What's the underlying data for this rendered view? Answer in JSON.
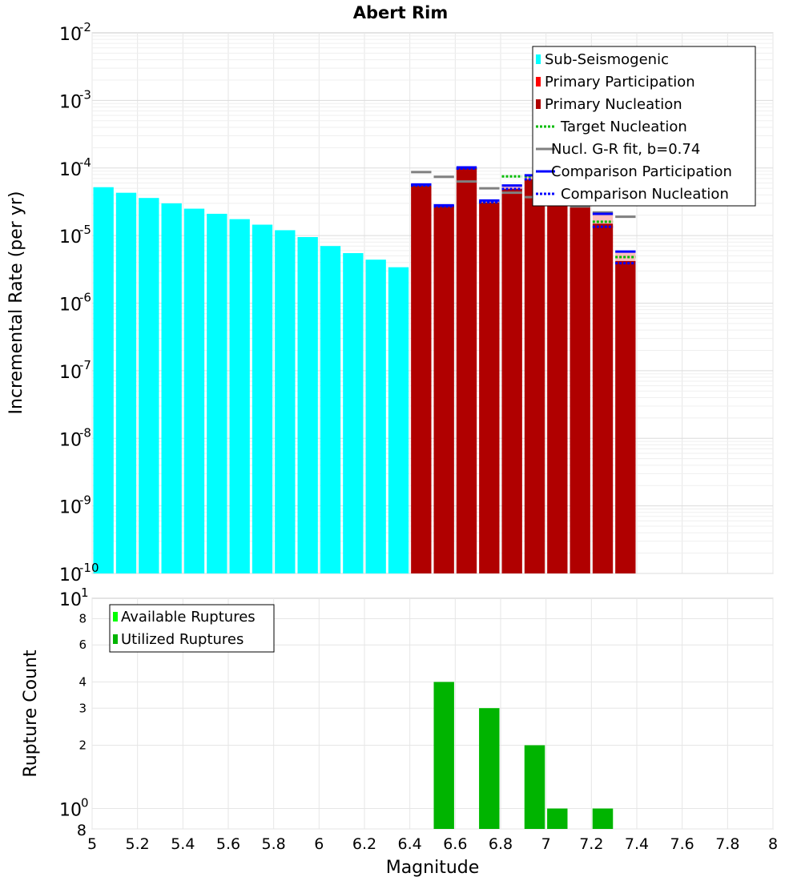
{
  "chart_data": [
    {
      "type": "bar",
      "title": "Abert Rim",
      "xlabel": "Magnitude",
      "ylabel": "Incremental Rate (per yr)",
      "yscale": "log",
      "xlim": [
        5,
        8
      ],
      "ylim": [
        1e-10,
        0.01
      ],
      "bin_width": 0.1,
      "y_tick_labels": [
        {
          "base": "10",
          "exp": "-10"
        },
        {
          "base": "10",
          "exp": "-9"
        },
        {
          "base": "10",
          "exp": "-8"
        },
        {
          "base": "10",
          "exp": "-7"
        },
        {
          "base": "10",
          "exp": "-6"
        },
        {
          "base": "10",
          "exp": "-5"
        },
        {
          "base": "10",
          "exp": "-4"
        },
        {
          "base": "10",
          "exp": "-3"
        },
        {
          "base": "10",
          "exp": "-2"
        }
      ],
      "series": [
        {
          "name": "Sub-Seismogenic",
          "color": "#00ffff",
          "kind": "bar",
          "x": [
            5.05,
            5.15,
            5.25,
            5.35,
            5.45,
            5.55,
            5.65,
            5.75,
            5.85,
            5.95,
            6.05,
            6.15,
            6.25,
            6.35
          ],
          "values": [
            5.2e-05,
            4.3e-05,
            3.6e-05,
            3e-05,
            2.5e-05,
            2.1e-05,
            1.75e-05,
            1.45e-05,
            1.2e-05,
            9.5e-06,
            7e-06,
            5.5e-06,
            4.4e-06,
            3.4e-06
          ]
        },
        {
          "name": "Primary Participation",
          "color": "#ff0000",
          "kind": "bar",
          "x": [
            6.45,
            6.55,
            6.65,
            6.75,
            6.85,
            6.95,
            7.05,
            7.15,
            7.25,
            7.35
          ],
          "values": [
            5.7e-05,
            2.8e-05,
            0.000102,
            3.3e-05,
            5.5e-05,
            7.8e-05,
            4.8e-05,
            5.3e-05,
            2.1e-05,
            5.8e-06
          ]
        },
        {
          "name": "Primary Nucleation",
          "color": "#b00000",
          "kind": "bar",
          "x": [
            6.45,
            6.55,
            6.65,
            6.75,
            6.85,
            6.95,
            7.05,
            7.15,
            7.25,
            7.35
          ],
          "values": [
            5.5e-05,
            2.7e-05,
            9.8e-05,
            3.1e-05,
            4.9e-05,
            6.8e-05,
            3.3e-05,
            3.3e-05,
            1.5e-05,
            4.2e-06
          ]
        },
        {
          "name": "Target Nucleation",
          "color": "#00bb00",
          "kind": "dotted-step",
          "x": [
            6.45,
            6.55,
            6.65,
            6.75,
            6.85,
            6.95,
            7.05,
            7.15,
            7.25,
            7.35
          ],
          "values": [
            5.5e-05,
            2.7e-05,
            9.8e-05,
            3.1e-05,
            7.5e-05,
            7.5e-05,
            3.3e-05,
            3.3e-05,
            1.6e-05,
            4.8e-06
          ]
        },
        {
          "name": "Nucl. G-R fit, b=0.74",
          "color": "#808080",
          "kind": "step",
          "x": [
            6.45,
            6.55,
            6.65,
            6.75,
            6.85,
            6.95,
            7.05,
            7.15,
            7.25,
            7.35
          ],
          "values": [
            8.7e-05,
            7.4e-05,
            6.3e-05,
            5e-05,
            4.3e-05,
            3.7e-05,
            3.2e-05,
            2.7e-05,
            2.2e-05,
            1.9e-05
          ]
        },
        {
          "name": "Comparison Participation",
          "color": "#0000ff",
          "kind": "step",
          "x": [
            6.45,
            6.55,
            6.65,
            6.75,
            6.85,
            6.95,
            7.05,
            7.15,
            7.25,
            7.35
          ],
          "values": [
            5.7e-05,
            2.8e-05,
            0.000102,
            3.3e-05,
            5.5e-05,
            7.8e-05,
            4.8e-05,
            5.3e-05,
            2.1e-05,
            5.8e-06
          ]
        },
        {
          "name": "Comparison Nucleation",
          "color": "#0000ff",
          "kind": "dotted-step",
          "x": [
            6.45,
            6.55,
            6.65,
            6.75,
            6.85,
            6.95,
            7.05,
            7.15,
            7.25,
            7.35
          ],
          "values": [
            5.5e-05,
            2.7e-05,
            9.8e-05,
            3.1e-05,
            4.9e-05,
            6.8e-05,
            3.3e-05,
            3.3e-05,
            1.35e-05,
            3.9e-06
          ]
        }
      ],
      "legend": {
        "position": "top-right",
        "entries": [
          "Sub-Seismogenic",
          "Primary Participation",
          "Primary Nucleation",
          "Target Nucleation",
          "Nucl. G-R fit, b=0.74",
          "Comparison Participation",
          "Comparison Nucleation"
        ]
      }
    },
    {
      "type": "bar",
      "title": "",
      "xlabel": "Magnitude",
      "ylabel": "Rupture Count",
      "yscale": "log",
      "xlim": [
        5,
        8
      ],
      "ylim": [
        0.8,
        10
      ],
      "bin_width": 0.1,
      "x_tick_labels": [
        "5",
        "5.2",
        "5.4",
        "5.6",
        "5.8",
        "6",
        "6.2",
        "6.4",
        "6.6",
        "6.8",
        "7",
        "7.2",
        "7.4",
        "7.6",
        "7.8",
        "8"
      ],
      "y_major_tick_labels": [
        {
          "value": 1,
          "base": "10",
          "exp": "0"
        },
        {
          "value": 10,
          "base": "10",
          "exp": "1"
        }
      ],
      "y_minor_tick_labels": [
        "8",
        "2",
        "3",
        "4",
        "6",
        "8"
      ],
      "series": [
        {
          "name": "Available Ruptures",
          "color": "#00ff00",
          "x": [
            6.55,
            6.75,
            6.95,
            7.05,
            7.25
          ],
          "values": [
            4,
            3,
            2,
            1,
            1
          ]
        },
        {
          "name": "Utilized Ruptures",
          "color": "#00b400",
          "x": [
            6.55,
            6.75,
            6.95,
            7.05,
            7.25
          ],
          "values": [
            4,
            3,
            2,
            1,
            1
          ]
        }
      ],
      "legend": {
        "position": "top-left",
        "entries": [
          "Available Ruptures",
          "Utilized Ruptures"
        ]
      }
    }
  ]
}
